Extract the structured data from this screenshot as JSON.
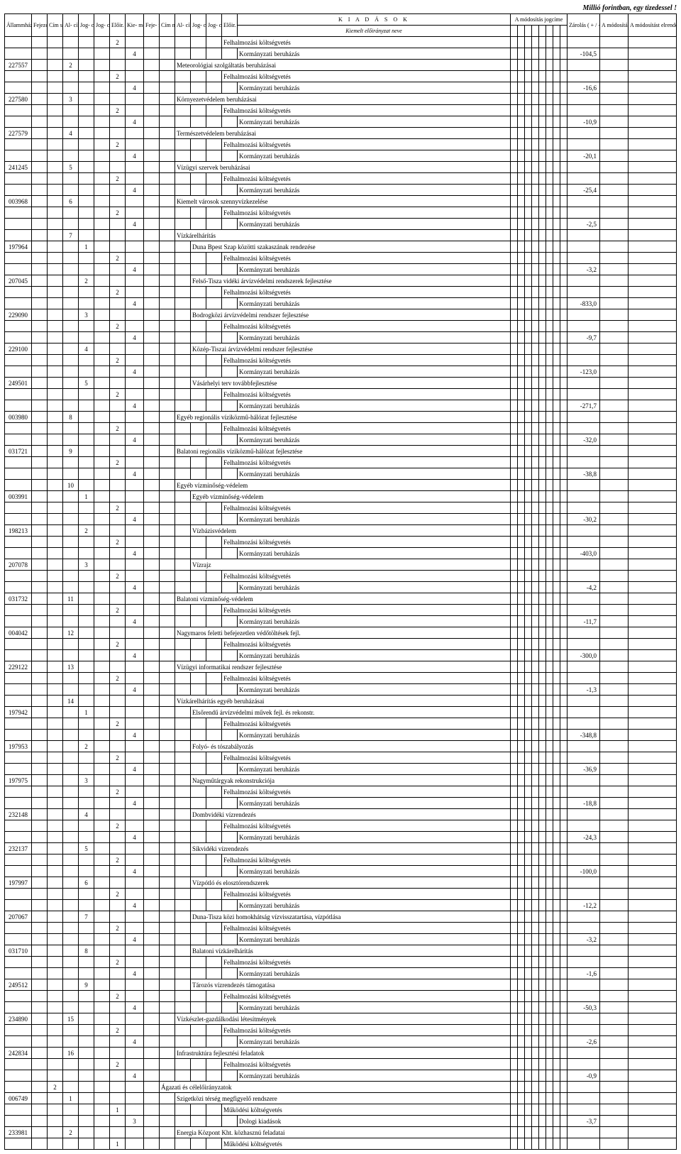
{
  "unit_note": "Millió forintban, egy tizedessel !",
  "headers": {
    "id": "Állammház-\n tartási\n egyedi\n azonosító",
    "fejezet": "Fejezet\nszám",
    "cim": "Cím\nszám",
    "alcim": "Al-\ncím\nszám",
    "jogcimcsop": "Jog-\ncím\ncsop.\nszám",
    "jogcim": "Jog-\ncím\nszám",
    "elorcsop": "Előir.\ncsop.\nszám",
    "kiemelt": "Kie-\nmelt\nelőir.\nszám",
    "fejezetnev": "Feje-\nzet\nnév",
    "cimnev": "Cím\nnév",
    "alcimnev": "Al-\ncím\nnév",
    "jogcimcsopnev": "Jog-\ncím\ncsop.\nnév",
    "jogcimnev": "Jog-\ncím\nnév",
    "elorcsopnev": "Előir.\ncsop.\nnév",
    "kiadasok": "K I A D Á S O K",
    "kiemeltnev": "Kiemelt előirányzat neve",
    "modjog": "A módosítás jogcíme",
    "zarolas": "Zárolás\n( + / - )",
    "hatasa": "A módosítás\nkövetkező\névre áthúzódó\nhatása",
    "szama": "A módosítást elrendelő\njogszabály/határozat száma"
  },
  "labels": {
    "felh": "Felhalmozási költségvetés",
    "korm": "Kormányzati beruházás",
    "muk": "Működési költségvetés",
    "dolog": "Dologi kiadások"
  },
  "rows": [
    {
      "ecs": "2",
      "dstart": 5,
      "text": "$felh"
    },
    {
      "ke": "4",
      "dstart": 6,
      "text": "$korm",
      "z": "-104,5"
    },
    {
      "id": "227557",
      "ac": "2",
      "dstart": 2,
      "text": "Meteorológiai szolgáltatás beruházásai"
    },
    {
      "ecs": "2",
      "dstart": 5,
      "text": "$felh"
    },
    {
      "ke": "4",
      "dstart": 6,
      "text": "$korm",
      "z": "-16,6"
    },
    {
      "id": "227580",
      "ac": "3",
      "dstart": 2,
      "text": "Környezetvédelem beruházásai"
    },
    {
      "ecs": "2",
      "dstart": 5,
      "text": "$felh"
    },
    {
      "ke": "4",
      "dstart": 6,
      "text": "$korm",
      "z": "-10,9"
    },
    {
      "id": "227579",
      "ac": "4",
      "dstart": 2,
      "text": "Természetvédelem beruházásai"
    },
    {
      "ecs": "2",
      "dstart": 5,
      "text": "$felh"
    },
    {
      "ke": "4",
      "dstart": 6,
      "text": "$korm",
      "z": "-20,1"
    },
    {
      "id": "241245",
      "ac": "5",
      "dstart": 2,
      "text": "Vízügyi szervek beruházásai"
    },
    {
      "ecs": "2",
      "dstart": 5,
      "text": "$felh"
    },
    {
      "ke": "4",
      "dstart": 6,
      "text": "$korm",
      "z": "-25,4"
    },
    {
      "id": "003968",
      "ac": "6",
      "dstart": 2,
      "text": "Kiemelt városok szennyvízkezelése"
    },
    {
      "ecs": "2",
      "dstart": 5,
      "text": "$felh"
    },
    {
      "ke": "4",
      "dstart": 6,
      "text": "$korm",
      "z": "-2,5"
    },
    {
      "ac": "7",
      "dstart": 2,
      "text": "Vízkárelhárítás"
    },
    {
      "id": "197964",
      "jcs": "1",
      "dstart": 3,
      "text": "Duna Bpest Szap közötti szakaszának rendezése"
    },
    {
      "ecs": "2",
      "dstart": 5,
      "text": "$felh"
    },
    {
      "ke": "4",
      "dstart": 6,
      "text": "$korm",
      "z": "-3,2"
    },
    {
      "id": "207045",
      "jcs": "2",
      "dstart": 3,
      "text": "Felső-Tisza vidéki árvízvédelmi rendszerek fejlesztése"
    },
    {
      "ecs": "2",
      "dstart": 5,
      "text": "$felh"
    },
    {
      "ke": "4",
      "dstart": 6,
      "text": "$korm",
      "z": "-833,0"
    },
    {
      "id": "229090",
      "jcs": "3",
      "dstart": 3,
      "text": "Bodrogközi árvízvédelmi rendszer fejlesztése"
    },
    {
      "ecs": "2",
      "dstart": 5,
      "text": "$felh"
    },
    {
      "ke": "4",
      "dstart": 6,
      "text": "$korm",
      "z": "-9,7"
    },
    {
      "id": "229100",
      "jcs": "4",
      "dstart": 3,
      "text": "Közép-Tiszai árvízvédelmi rendszer fejlesztése"
    },
    {
      "ecs": "2",
      "dstart": 5,
      "text": "$felh"
    },
    {
      "ke": "4",
      "dstart": 6,
      "text": "$korm",
      "z": "-123,0"
    },
    {
      "id": "249501",
      "jcs": "5",
      "dstart": 3,
      "text": "Vásárhelyi terv továbbfejlesztése"
    },
    {
      "ecs": "2",
      "dstart": 5,
      "text": "$felh"
    },
    {
      "ke": "4",
      "dstart": 6,
      "text": "$korm",
      "z": "-271,7"
    },
    {
      "id": "003980",
      "ac": "8",
      "dstart": 2,
      "text": "Egyéb regionális víziközmű-hálózat fejlesztése"
    },
    {
      "ecs": "2",
      "dstart": 5,
      "text": "$felh"
    },
    {
      "ke": "4",
      "dstart": 6,
      "text": "$korm",
      "z": "-32,0"
    },
    {
      "id": "031721",
      "ac": "9",
      "dstart": 2,
      "text": "Balatoni regionális víziközmű-hálózat fejlesztése"
    },
    {
      "ecs": "2",
      "dstart": 5,
      "text": "$felh"
    },
    {
      "ke": "4",
      "dstart": 6,
      "text": "$korm",
      "z": "-38,8"
    },
    {
      "ac": "10",
      "dstart": 2,
      "text": "Egyéb vízminőség-védelem"
    },
    {
      "id": "003991",
      "jcs": "1",
      "dstart": 3,
      "text": "Egyéb vízminőség-védelem"
    },
    {
      "ecs": "2",
      "dstart": 5,
      "text": "$felh"
    },
    {
      "ke": "4",
      "dstart": 6,
      "text": "$korm",
      "z": "-30,2"
    },
    {
      "id": "198213",
      "jcs": "2",
      "dstart": 3,
      "text": "Vízbázisvédelem"
    },
    {
      "ecs": "2",
      "dstart": 5,
      "text": "$felh"
    },
    {
      "ke": "4",
      "dstart": 6,
      "text": "$korm",
      "z": "-403,0"
    },
    {
      "id": "207078",
      "jcs": "3",
      "dstart": 3,
      "text": "Vízrajz"
    },
    {
      "ecs": "2",
      "dstart": 5,
      "text": "$felh"
    },
    {
      "ke": "4",
      "dstart": 6,
      "text": "$korm",
      "z": "-4,2"
    },
    {
      "id": "031732",
      "ac": "11",
      "dstart": 2,
      "text": "Balatoni vízminőség-védelem"
    },
    {
      "ecs": "2",
      "dstart": 5,
      "text": "$felh"
    },
    {
      "ke": "4",
      "dstart": 6,
      "text": "$korm",
      "z": "-11,7"
    },
    {
      "id": "004042",
      "ac": "12",
      "dstart": 2,
      "text": "Nagymaros feletti befejezetlen védőtöltések fejl."
    },
    {
      "ecs": "2",
      "dstart": 5,
      "text": "$felh"
    },
    {
      "ke": "4",
      "dstart": 6,
      "text": "$korm",
      "z": "-300,0"
    },
    {
      "id": "229122",
      "ac": "13",
      "dstart": 2,
      "text": "Vízügyi informatikai rendszer fejlesztése"
    },
    {
      "ecs": "2",
      "dstart": 5,
      "text": "$felh"
    },
    {
      "ke": "4",
      "dstart": 6,
      "text": "$korm",
      "z": "-1,3"
    },
    {
      "ac": "14",
      "dstart": 2,
      "text": "Vízkárelhárítás egyéb beruházásai"
    },
    {
      "id": "197942",
      "jcs": "1",
      "dstart": 3,
      "text": "Elsőrendű árvízvédelmi művek fejl. és rekonstr."
    },
    {
      "ecs": "2",
      "dstart": 5,
      "text": "$felh"
    },
    {
      "ke": "4",
      "dstart": 6,
      "text": "$korm",
      "z": "-348,8"
    },
    {
      "id": "197953",
      "jcs": "2",
      "dstart": 3,
      "text": "Folyó- és tószabályozás"
    },
    {
      "ecs": "2",
      "dstart": 5,
      "text": "$felh"
    },
    {
      "ke": "4",
      "dstart": 6,
      "text": "$korm",
      "z": "-36,9"
    },
    {
      "id": "197975",
      "jcs": "3",
      "dstart": 3,
      "text": "Nagyműtárgyak rekonstrukciója"
    },
    {
      "ecs": "2",
      "dstart": 5,
      "text": "$felh"
    },
    {
      "ke": "4",
      "dstart": 6,
      "text": "$korm",
      "z": "-18,8"
    },
    {
      "id": "232148",
      "jcs": "4",
      "dstart": 3,
      "text": "Dombvidéki vízrendezés"
    },
    {
      "ecs": "2",
      "dstart": 5,
      "text": "$felh"
    },
    {
      "ke": "4",
      "dstart": 6,
      "text": "$korm",
      "z": "-24,3"
    },
    {
      "id": "232137",
      "jcs": "5",
      "dstart": 3,
      "text": "Síkvidéki vízrendezés"
    },
    {
      "ecs": "2",
      "dstart": 5,
      "text": "$felh"
    },
    {
      "ke": "4",
      "dstart": 6,
      "text": "$korm",
      "z": "-100,0"
    },
    {
      "id": "197997",
      "jcs": "6",
      "dstart": 3,
      "text": "Vízpótló és elosztórendszerek"
    },
    {
      "ecs": "2",
      "dstart": 5,
      "text": "$felh"
    },
    {
      "ke": "4",
      "dstart": 6,
      "text": "$korm",
      "z": "-12,2"
    },
    {
      "id": "207067",
      "jcs": "7",
      "dstart": 3,
      "text": "Duna-Tisza közi homokhátság vízvisszatartása, vízpótlása"
    },
    {
      "ecs": "2",
      "dstart": 5,
      "text": "$felh"
    },
    {
      "ke": "4",
      "dstart": 6,
      "text": "$korm",
      "z": "-3,2"
    },
    {
      "id": "031710",
      "jcs": "8",
      "dstart": 3,
      "text": "Balatoni vízkárelhárítás"
    },
    {
      "ecs": "2",
      "dstart": 5,
      "text": "$felh"
    },
    {
      "ke": "4",
      "dstart": 6,
      "text": "$korm",
      "z": "-1,6"
    },
    {
      "id": "249512",
      "jcs": "9",
      "dstart": 3,
      "text": "Tározós vízrendezés támogatása"
    },
    {
      "ecs": "2",
      "dstart": 5,
      "text": "$felh"
    },
    {
      "ke": "4",
      "dstart": 6,
      "text": "$korm",
      "z": "-50,3"
    },
    {
      "id": "234890",
      "ac": "15",
      "dstart": 2,
      "text": "Vízkészlet-gazdálkodási létesítmények"
    },
    {
      "ecs": "2",
      "dstart": 5,
      "text": "$felh"
    },
    {
      "ke": "4",
      "dstart": 6,
      "text": "$korm",
      "z": "-2,6"
    },
    {
      "id": "242834",
      "ac": "16",
      "dstart": 2,
      "text": "Infrastruktúra fejlesztési feladatok"
    },
    {
      "ecs": "2",
      "dstart": 5,
      "text": "$felh"
    },
    {
      "ke": "4",
      "dstart": 6,
      "text": "$korm",
      "z": "-0,9"
    },
    {
      "cim": "2",
      "dstart": 1,
      "text": "Ágazati és célelőirányzatok"
    },
    {
      "id": "006749",
      "ac": "1",
      "dstart": 2,
      "text": "Szigetközi térség megfigyelő rendszere"
    },
    {
      "ecs": "1",
      "dstart": 5,
      "text": "$muk"
    },
    {
      "ke": "3",
      "dstart": 6,
      "text": "$dolog",
      "z": "-3,7"
    },
    {
      "id": "233981",
      "ac": "2",
      "dstart": 2,
      "text": "Energia Központ Kht. közhasznú feladatai"
    },
    {
      "ecs": "1",
      "dstart": 5,
      "text": "$muk"
    }
  ]
}
